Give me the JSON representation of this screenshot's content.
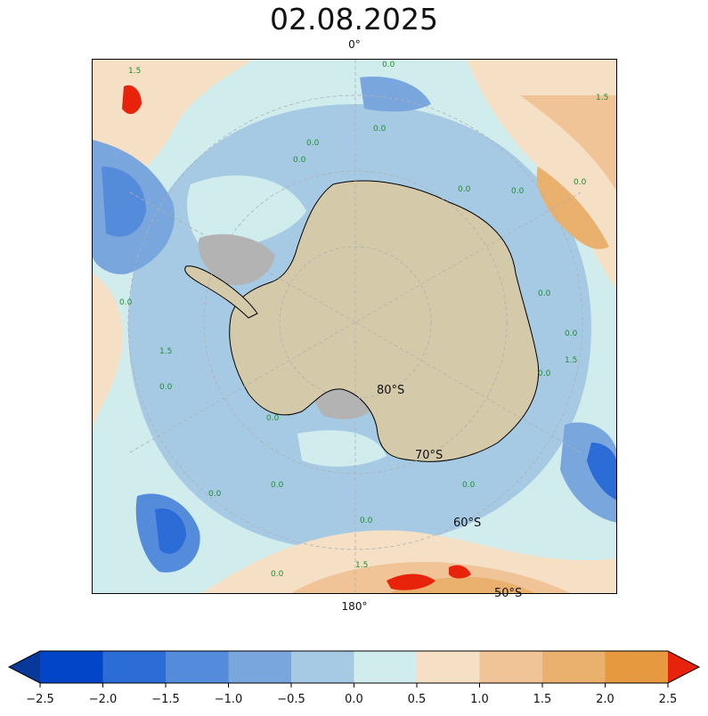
{
  "title": "02.08.2025",
  "map": {
    "projection": "south-polar-stereographic",
    "lon_labels": {
      "top": "0°",
      "bottom": "180°"
    },
    "lat_labels": [
      "80°S",
      "70°S",
      "60°S",
      "50°S"
    ],
    "contour_labels": [
      "0.0",
      "1.5"
    ],
    "colors": {
      "land": "#d4c9a8",
      "ice_shelf": "#b3b3b3",
      "ocean_base": "#a6cae4",
      "near_zero": "#d0ecec"
    }
  },
  "colorbar": {
    "ticks": [
      "−2.5",
      "−2.0",
      "−1.5",
      "−1.0",
      "−0.5",
      "0.0",
      "0.5",
      "1.0",
      "1.5",
      "2.0",
      "2.5"
    ],
    "levels": [
      -2.5,
      -2.0,
      -1.5,
      -1.0,
      -0.5,
      0.0,
      0.5,
      1.0,
      1.5,
      2.0,
      2.5
    ],
    "under_color": "#08399a",
    "over_color": "#e8230b",
    "colors": [
      "#0345c8",
      "#2c6cd6",
      "#558bdb",
      "#7aa6de",
      "#a6cae4",
      "#d0ecec",
      "#f5e0c6",
      "#f1c498",
      "#eab06e",
      "#e6993f"
    ]
  }
}
